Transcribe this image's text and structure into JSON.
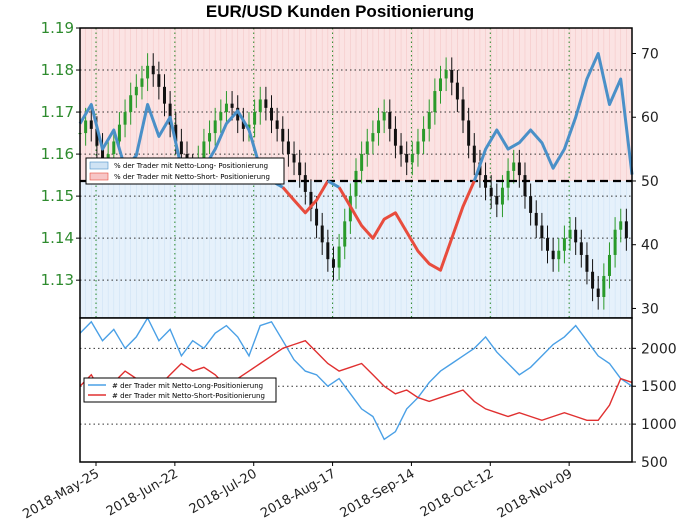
{
  "chart_data": [
    {
      "type": "line",
      "title": "EUR/USD Kunden Positionierung",
      "ylabel_left": "",
      "ylabel_right": "",
      "y_left_ticks": [
        "1.19",
        "1.18",
        "1.17",
        "1.16",
        "1.15",
        "1.14",
        "1.13"
      ],
      "y_left_lim": [
        1.121,
        1.19
      ],
      "y_right_ticks": [
        "70",
        "60",
        "50",
        "40",
        "30"
      ],
      "y_right_lim": [
        28.5,
        74
      ],
      "reference_line": 50,
      "legend": {
        "placement": "middle-left",
        "entries": [
          "% der Trader mit Netto-Long- Positionierung",
          "% der Trader mit Netto-Short- Positionierung"
        ]
      },
      "price_candles_approx": [
        1.165,
        1.168,
        1.166,
        1.162,
        1.158,
        1.16,
        1.163,
        1.167,
        1.17,
        1.174,
        1.176,
        1.178,
        1.181,
        1.179,
        1.176,
        1.172,
        1.167,
        1.163,
        1.16,
        1.157,
        1.156,
        1.159,
        1.163,
        1.165,
        1.168,
        1.17,
        1.172,
        1.171,
        1.168,
        1.166,
        1.167,
        1.17,
        1.173,
        1.171,
        1.168,
        1.166,
        1.163,
        1.16,
        1.158,
        1.155,
        1.151,
        1.147,
        1.143,
        1.139,
        1.135,
        1.133,
        1.138,
        1.144,
        1.15,
        1.156,
        1.16,
        1.163,
        1.165,
        1.168,
        1.17,
        1.166,
        1.162,
        1.16,
        1.158,
        1.16,
        1.163,
        1.166,
        1.17,
        1.175,
        1.178,
        1.18,
        1.177,
        1.173,
        1.168,
        1.162,
        1.158,
        1.155,
        1.152,
        1.15,
        1.148,
        1.152,
        1.156,
        1.158,
        1.155,
        1.15,
        1.146,
        1.143,
        1.14,
        1.137,
        1.135,
        1.137,
        1.14,
        1.142,
        1.139,
        1.136,
        1.132,
        1.128,
        1.126,
        1.131,
        1.136,
        1.142,
        1.144,
        1.14
      ],
      "series": [
        {
          "name": "% der Trader mit Netto-Long- Positionierung",
          "color": "#4a90c8",
          "x": [
            0,
            2,
            4,
            6,
            8,
            10,
            12,
            14,
            16,
            18,
            20,
            22,
            24,
            26,
            28,
            30,
            32,
            34,
            36,
            38,
            40,
            42,
            44,
            46,
            48,
            50,
            52,
            54,
            56,
            58,
            60,
            62,
            64,
            66,
            68,
            70,
            72,
            74,
            76,
            78,
            80,
            82,
            84,
            86,
            88,
            90,
            92,
            94,
            96,
            98
          ],
          "values": [
            59,
            62,
            55,
            58,
            52,
            54,
            62,
            57,
            60,
            52,
            51,
            52,
            55,
            59,
            61,
            58,
            52,
            50,
            49,
            47,
            45,
            47,
            50,
            49,
            46,
            43,
            41,
            44,
            45,
            42,
            39,
            37,
            36,
            41,
            46,
            50,
            55,
            58,
            55,
            56,
            58,
            56,
            52,
            55,
            60,
            66,
            70,
            62,
            66,
            51
          ]
        },
        {
          "name": "% der Trader mit Netto-Short- Positionierung",
          "color": "#e84c3d",
          "x": [
            0,
            2,
            4,
            6,
            8,
            10,
            12,
            14,
            16,
            18,
            20,
            22,
            24,
            26,
            28,
            30,
            32,
            34,
            36,
            38,
            40,
            42,
            44,
            46,
            48,
            50,
            52,
            54,
            56,
            58,
            60,
            62,
            64,
            66,
            68,
            70,
            72,
            74,
            76,
            78,
            80,
            82,
            84,
            86,
            88,
            90,
            92,
            94,
            96,
            98
          ],
          "values": [
            41,
            38,
            45,
            42,
            48,
            46,
            38,
            43,
            40,
            48,
            49,
            48,
            45,
            41,
            39,
            42,
            48,
            50,
            51,
            53,
            55,
            53,
            50,
            51,
            54,
            57,
            59,
            56,
            55,
            58,
            61,
            63,
            64,
            59,
            54,
            50,
            45,
            42,
            45,
            44,
            42,
            44,
            48,
            45,
            40,
            34,
            30,
            38,
            34,
            49
          ]
        }
      ]
    },
    {
      "type": "line",
      "y_right_ticks": [
        "2000",
        "1500",
        "1000",
        "500"
      ],
      "ylim": [
        500,
        2400
      ],
      "legend": {
        "placement": "middle-left",
        "entries": [
          "# der Trader mit Netto-Long-Positionierung",
          "# der Trader mit Netto-Short-Positionierung"
        ]
      },
      "x_tick_labels": [
        "2018-May-25",
        "2018-Jun-22",
        "2018-Jul-20",
        "2018-Aug-17",
        "2018-Sep-14",
        "2018-Oct-12",
        "2018-Nov-09"
      ],
      "series": [
        {
          "name": "# der Trader mit Netto-Long-Positionierung",
          "color": "#4aa0e6",
          "x": [
            0,
            2,
            4,
            6,
            8,
            10,
            12,
            14,
            16,
            18,
            20,
            22,
            24,
            26,
            28,
            30,
            32,
            34,
            36,
            38,
            40,
            42,
            44,
            46,
            48,
            50,
            52,
            54,
            56,
            58,
            60,
            62,
            64,
            66,
            68,
            70,
            72,
            74,
            76,
            78,
            80,
            82,
            84,
            86,
            88,
            90,
            92,
            94,
            96,
            98
          ],
          "values": [
            2200,
            2350,
            2100,
            2250,
            2000,
            2150,
            2400,
            2100,
            2250,
            1900,
            2100,
            2000,
            2200,
            2300,
            2150,
            1900,
            2300,
            2350,
            2100,
            1850,
            1700,
            1650,
            1500,
            1600,
            1400,
            1200,
            1100,
            800,
            900,
            1200,
            1350,
            1550,
            1700,
            1800,
            1900,
            2000,
            2150,
            1950,
            1800,
            1650,
            1750,
            1900,
            2050,
            2150,
            2300,
            2100,
            1900,
            1800,
            1600,
            1500
          ]
        },
        {
          "name": "# der Trader mit Netto-Short-Positionierung",
          "color": "#e03030",
          "x": [
            0,
            2,
            4,
            6,
            8,
            10,
            12,
            14,
            16,
            18,
            20,
            22,
            24,
            26,
            28,
            30,
            32,
            34,
            36,
            38,
            40,
            42,
            44,
            46,
            48,
            50,
            52,
            54,
            56,
            58,
            60,
            62,
            64,
            66,
            68,
            70,
            72,
            74,
            76,
            78,
            80,
            82,
            84,
            86,
            88,
            90,
            92,
            94,
            96,
            98
          ],
          "values": [
            1500,
            1650,
            1400,
            1550,
            1700,
            1600,
            1450,
            1500,
            1650,
            1800,
            1700,
            1750,
            1650,
            1500,
            1600,
            1700,
            1800,
            1900,
            2000,
            2050,
            2100,
            1950,
            1800,
            1700,
            1750,
            1800,
            1650,
            1500,
            1400,
            1450,
            1350,
            1300,
            1350,
            1400,
            1450,
            1300,
            1200,
            1150,
            1100,
            1150,
            1100,
            1050,
            1100,
            1150,
            1100,
            1050,
            1050,
            1250,
            1600,
            1550
          ]
        }
      ]
    }
  ]
}
